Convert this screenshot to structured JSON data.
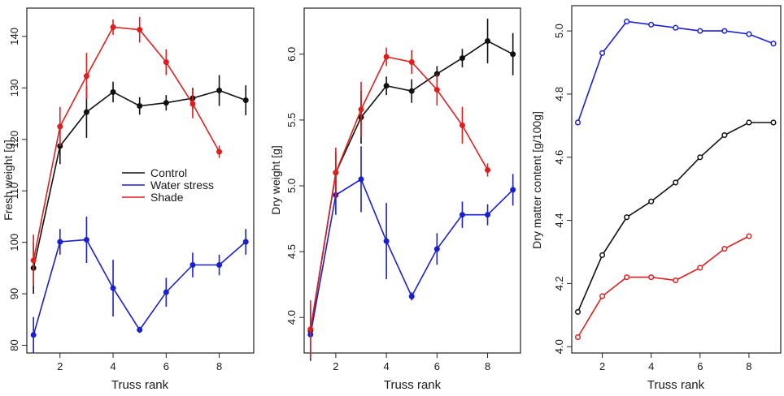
{
  "colors": {
    "control": "#111111",
    "water_stress": "#1a1fd0",
    "shade": "#e01e1e",
    "axis": "#222222"
  },
  "chart_data": [
    {
      "type": "line",
      "id": "fresh",
      "xlabel": "Truss rank",
      "ylabel": "Fresh weight [g]",
      "xlim": [
        0.75,
        9.3
      ],
      "ylim": [
        78.5,
        145.5
      ],
      "xticks": [
        2,
        4,
        6,
        8
      ],
      "yticks": [
        80,
        90,
        100,
        110,
        120,
        130,
        140
      ],
      "legend": {
        "position": "center",
        "entries": [
          "Control",
          "Water stress",
          "Shade"
        ]
      },
      "series": [
        {
          "name": "Control",
          "key": "control",
          "x": [
            1,
            2,
            3,
            4,
            5,
            6,
            7,
            8,
            9
          ],
          "values": [
            95,
            118.7,
            125.3,
            129.2,
            126.5,
            127.1,
            128,
            129.5,
            127.6
          ],
          "errors": [
            5,
            3.5,
            5,
            2,
            1.7,
            1.5,
            2,
            3,
            2.9
          ]
        },
        {
          "name": "Water stress",
          "key": "water_stress",
          "x": [
            1,
            2,
            3,
            4,
            5,
            6,
            7,
            8,
            9
          ],
          "values": [
            82,
            100.1,
            100.5,
            91.1,
            83,
            90.3,
            95.6,
            95.6,
            100.1
          ],
          "errors": [
            3.5,
            2.5,
            4.5,
            5.5,
            0.6,
            2.8,
            2.4,
            2,
            2.5
          ]
        },
        {
          "name": "Shade",
          "key": "shade",
          "x": [
            1,
            2,
            3,
            4,
            5,
            6,
            7,
            8
          ],
          "values": [
            96.5,
            122.5,
            132.3,
            141.8,
            141.3,
            135,
            126.9,
            117.6
          ],
          "errors": [
            5,
            3.8,
            4.5,
            1.5,
            2.5,
            2.5,
            2.8,
            1.2
          ]
        }
      ]
    },
    {
      "type": "line",
      "id": "dry",
      "xlabel": "Truss rank",
      "ylabel": "Dry weight [g]",
      "xlim": [
        0.75,
        9.3
      ],
      "ylim": [
        3.73,
        6.35
      ],
      "xticks": [
        2,
        4,
        6,
        8
      ],
      "yticks": [
        4.0,
        4.5,
        5.0,
        5.5,
        6.0
      ],
      "series": [
        {
          "name": "Control",
          "key": "control",
          "x": [
            1,
            2,
            3,
            4,
            5,
            6,
            7,
            8,
            9
          ],
          "values": [
            3.9,
            5.1,
            5.52,
            5.76,
            5.72,
            5.85,
            5.97,
            6.1,
            6.0
          ],
          "errors": [
            0.2,
            0.15,
            0.2,
            0.07,
            0.09,
            0.06,
            0.07,
            0.17,
            0.16
          ]
        },
        {
          "name": "Water stress",
          "key": "water_stress",
          "x": [
            1,
            2,
            3,
            4,
            5,
            6,
            7,
            8,
            9
          ],
          "values": [
            3.87,
            4.93,
            5.05,
            4.58,
            4.16,
            4.52,
            4.78,
            4.78,
            4.97
          ],
          "errors": [
            0.2,
            0.15,
            0.25,
            0.29,
            0.03,
            0.12,
            0.1,
            0.08,
            0.12
          ]
        },
        {
          "name": "Shade",
          "key": "shade",
          "x": [
            1,
            2,
            3,
            4,
            5,
            6,
            7,
            8
          ],
          "values": [
            3.91,
            5.1,
            5.58,
            5.98,
            5.94,
            5.73,
            5.46,
            5.12
          ],
          "errors": [
            0.22,
            0.19,
            0.21,
            0.07,
            0.09,
            0.12,
            0.14,
            0.05
          ]
        }
      ]
    },
    {
      "type": "line",
      "id": "drymatter",
      "xlabel": "Truss rank",
      "ylabel": "Dry matter content [g/100g]",
      "xlim": [
        0.75,
        9.3
      ],
      "ylim": [
        3.98,
        5.08
      ],
      "xticks": [
        2,
        4,
        6,
        8
      ],
      "yticks": [
        4.0,
        4.2,
        4.4,
        4.6,
        4.8,
        5.0
      ],
      "series": [
        {
          "name": "Control",
          "key": "control",
          "x": [
            1,
            2,
            3,
            4,
            5,
            6,
            7,
            8,
            9
          ],
          "values": [
            4.11,
            4.29,
            4.41,
            4.46,
            4.52,
            4.6,
            4.67,
            4.71,
            4.71
          ]
        },
        {
          "name": "Water stress",
          "key": "water_stress",
          "x": [
            1,
            2,
            3,
            4,
            5,
            6,
            7,
            8,
            9
          ],
          "values": [
            4.71,
            4.93,
            5.03,
            5.02,
            5.01,
            5.0,
            5.0,
            4.99,
            4.96
          ]
        },
        {
          "name": "Shade",
          "key": "shade",
          "x": [
            1,
            2,
            3,
            4,
            5,
            6,
            7,
            8
          ],
          "values": [
            4.03,
            4.16,
            4.22,
            4.22,
            4.21,
            4.25,
            4.31,
            4.35
          ]
        }
      ]
    }
  ]
}
